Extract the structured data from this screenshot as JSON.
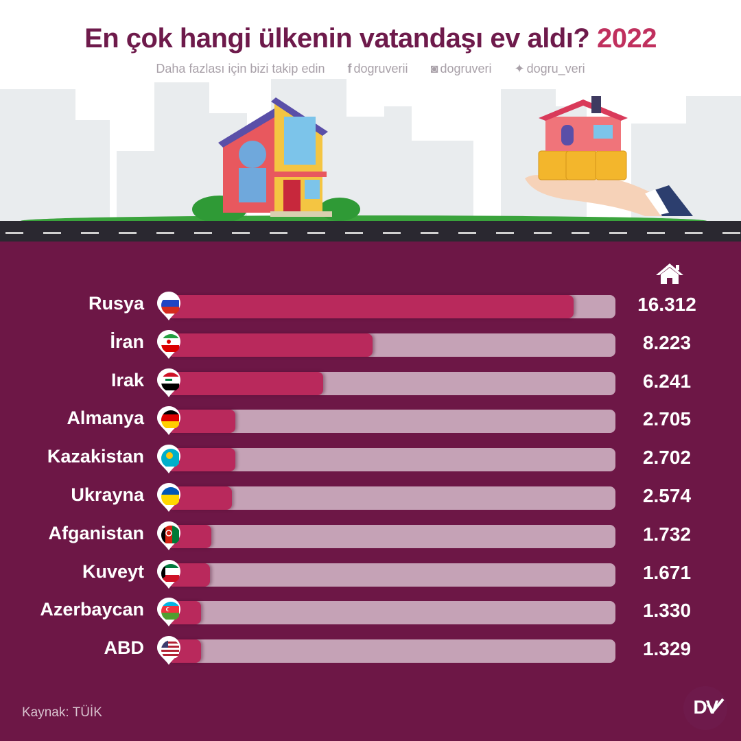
{
  "header": {
    "title": "En çok hangi ülkenin vatandaşı ev aldı?",
    "year": "2022",
    "follow_text": "Daha fazlası için bizi takip edin",
    "facebook": "dogruverii",
    "instagram": "dogruveri",
    "twitter": "dogru_veri"
  },
  "footer": {
    "source": "Kaynak: TÜİK",
    "logo_text": "DV"
  },
  "chart_data": {
    "type": "bar",
    "orientation": "horizontal",
    "title": "En çok hangi ülkenin vatandaşı ev aldı? 2022",
    "categories": [
      "Rusya",
      "İran",
      "Irak",
      "Almanya",
      "Kazakistan",
      "Ukrayna",
      "Afganistan",
      "Kuveyt",
      "Azerbaycan",
      "ABD"
    ],
    "values": [
      16312,
      8223,
      6241,
      2705,
      2702,
      2574,
      1732,
      1671,
      1330,
      1329
    ],
    "value_labels": [
      "16.312",
      "8.223",
      "6.241",
      "2.705",
      "2.702",
      "2.574",
      "1.732",
      "1.671",
      "1.330",
      "1.329"
    ],
    "xlim": [
      0,
      18000
    ],
    "grid": false,
    "flags": [
      "russia-flag",
      "iran-flag",
      "iraq-flag",
      "germany-flag",
      "kazakhstan-flag",
      "ukraine-flag",
      "afghanistan-flag",
      "kuwait-flag",
      "azerbaijan-flag",
      "usa-flag"
    ],
    "colors": {
      "bar": "#b9295c",
      "track": "#c5a2b6",
      "panel": "#6d1746",
      "title": "#6e1a4b",
      "year": "#c0305e"
    }
  }
}
